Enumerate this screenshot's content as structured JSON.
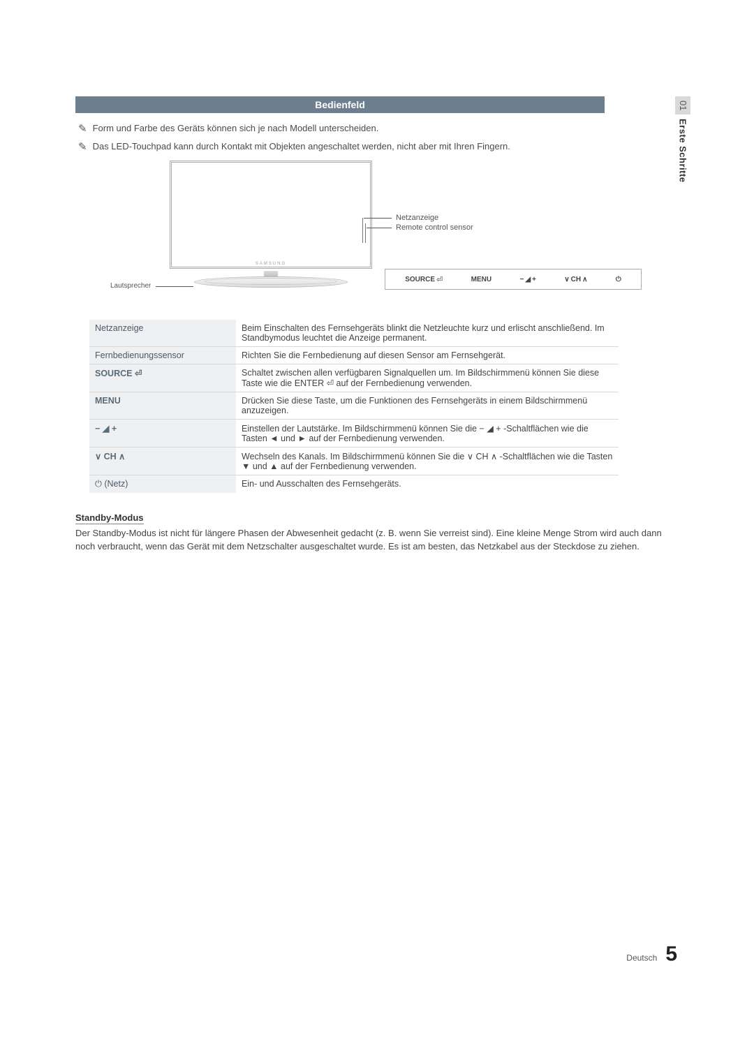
{
  "sideTab": {
    "num": "01",
    "title": "Erste Schritte"
  },
  "headerBar": "Bedienfeld",
  "notes": [
    "Form und Farbe des Geräts können sich je nach Modell unterscheiden.",
    "Das LED-Touchpad kann durch Kontakt mit Objekten angeschaltet werden, nicht aber mit Ihren Fingern."
  ],
  "diagram": {
    "logo": "SAMSUNG",
    "labelPower": "Netzanzeige",
    "labelSensor": "Remote control sensor",
    "labelSpeaker": "Lautsprecher",
    "panel": {
      "source": "SOURCE",
      "menu": "MENU",
      "volMinus": "−",
      "volPlus": "+",
      "chDown": "∨",
      "ch": "CH",
      "chUp": "∧"
    }
  },
  "defs": [
    {
      "label": "Netzanzeige",
      "strong": false,
      "desc": "Beim Einschalten des Fernsehgeräts blinkt die Netzleuchte kurz und erlischt anschließend. Im Standbymodus leuchtet die Anzeige permanent."
    },
    {
      "label": "Fernbedienungssensor",
      "strong": false,
      "desc": "Richten Sie die Fernbedienung auf diesen Sensor am Fernsehgerät."
    },
    {
      "label": "SOURCE ⏎",
      "strong": true,
      "desc": "Schaltet zwischen allen verfügbaren Signalquellen um. Im Bildschirmmenü können Sie diese Taste wie die ENTER ⏎ auf der Fernbedienung verwenden."
    },
    {
      "label": "MENU",
      "strong": true,
      "desc": "Drücken Sie diese Taste, um die Funktionen des Fernsehgeräts in einem Bildschirmmenü anzuzeigen."
    },
    {
      "label": "− ◢ +",
      "strong": true,
      "desc": "Einstellen der Lautstärke. Im Bildschirmmenü können Sie die − ◢ + -Schaltflächen wie die Tasten ◄ und ► auf der Fernbedienung verwenden."
    },
    {
      "label": "∨ CH ∧",
      "strong": true,
      "desc": "Wechseln des Kanals. Im Bildschirmmenü können Sie die ∨ CH ∧ -Schaltflächen wie die Tasten ▼ und ▲ auf der Fernbedienung verwenden."
    },
    {
      "label": "⏻ (Netz)",
      "strong": false,
      "desc": "Ein- und Ausschalten des Fernsehgeräts."
    }
  ],
  "standby": {
    "heading": "Standby-Modus",
    "body": "Der Standby-Modus ist nicht für längere Phasen der Abwesenheit gedacht (z. B. wenn Sie verreist sind). Eine kleine Menge Strom wird auch dann noch verbraucht, wenn das Gerät mit dem Netzschalter ausgeschaltet wurde. Es ist am besten, das Netzkabel aus der Steckdose zu ziehen."
  },
  "footer": {
    "lang": "Deutsch",
    "page": "5"
  },
  "colors": {
    "headerBg": "#6d7f8f",
    "labelBg": "#eef0f2",
    "sideTabBg": "#d9d9d9"
  }
}
